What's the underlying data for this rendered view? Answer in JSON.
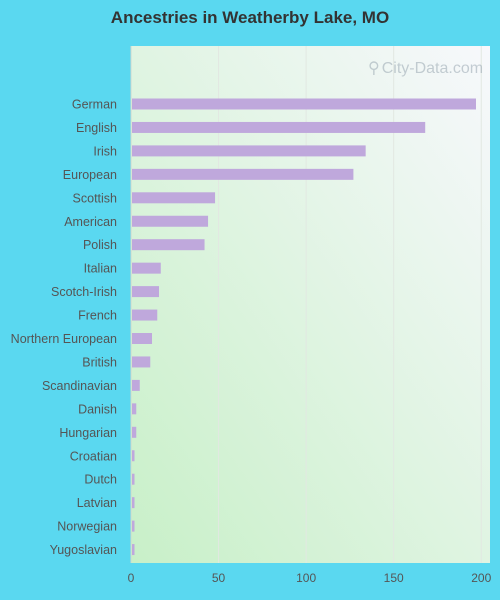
{
  "title": "Ancestries in Weatherby Lake, MO",
  "watermark": "City-Data.com",
  "colors": {
    "page_bg": "#5ad8f0",
    "bar": "#bfa8dc",
    "plot_bg_top_right": "#f7f8fc",
    "plot_bg_bottom_left": "#c8f0c8",
    "axis_text": "#555555",
    "grid": "#e2e8e2"
  },
  "chart_data": {
    "type": "bar",
    "orientation": "horizontal",
    "title": "Ancestries in Weatherby Lake, MO",
    "xlabel": "",
    "ylabel": "",
    "xlim": [
      0,
      205
    ],
    "xticks": [
      0,
      50,
      100,
      150,
      200
    ],
    "grid": true,
    "categories": [
      "German",
      "English",
      "Irish",
      "European",
      "Scottish",
      "American",
      "Polish",
      "Italian",
      "Scotch-Irish",
      "French",
      "Northern European",
      "British",
      "Scandinavian",
      "Danish",
      "Hungarian",
      "Croatian",
      "Dutch",
      "Latvian",
      "Norwegian",
      "Yugoslavian"
    ],
    "values": [
      197,
      168,
      134,
      127,
      48,
      44,
      42,
      17,
      16,
      15,
      12,
      11,
      5,
      3,
      3,
      2,
      2,
      2,
      2,
      2
    ]
  }
}
